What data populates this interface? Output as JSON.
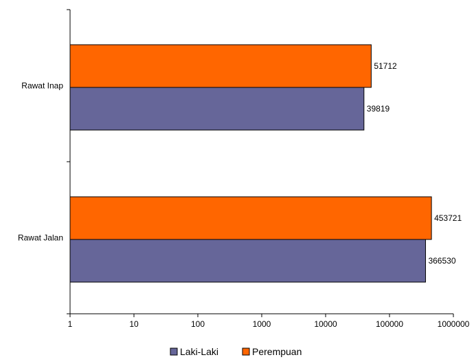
{
  "chart_data": {
    "type": "bar",
    "orientation": "horizontal",
    "x_scale": "log",
    "xlim": [
      1,
      1000000
    ],
    "x_ticks": [
      {
        "value": 1,
        "label": "1"
      },
      {
        "value": 10,
        "label": "10"
      },
      {
        "value": 100,
        "label": "100"
      },
      {
        "value": 1000,
        "label": "1000"
      },
      {
        "value": 10000,
        "label": "10000"
      },
      {
        "value": 100000,
        "label": "100000"
      },
      {
        "value": 1000000,
        "label": "1000000"
      }
    ],
    "categories": [
      "Rawat Inap",
      "Rawat Jalan"
    ],
    "series": [
      {
        "name": "Perempuan",
        "color": "#FF6600",
        "values": [
          51712,
          453721
        ]
      },
      {
        "name": "Laki-Laki",
        "color": "#666699",
        "values": [
          39819,
          366530
        ]
      }
    ],
    "data_labels": true,
    "grid": false,
    "legend": {
      "position": "bottom",
      "entries": [
        "Laki-Laki",
        "Perempuan"
      ]
    },
    "colors": {
      "laki_laki": "#666699",
      "perempuan": "#FF6600",
      "axis": "#000000"
    }
  }
}
